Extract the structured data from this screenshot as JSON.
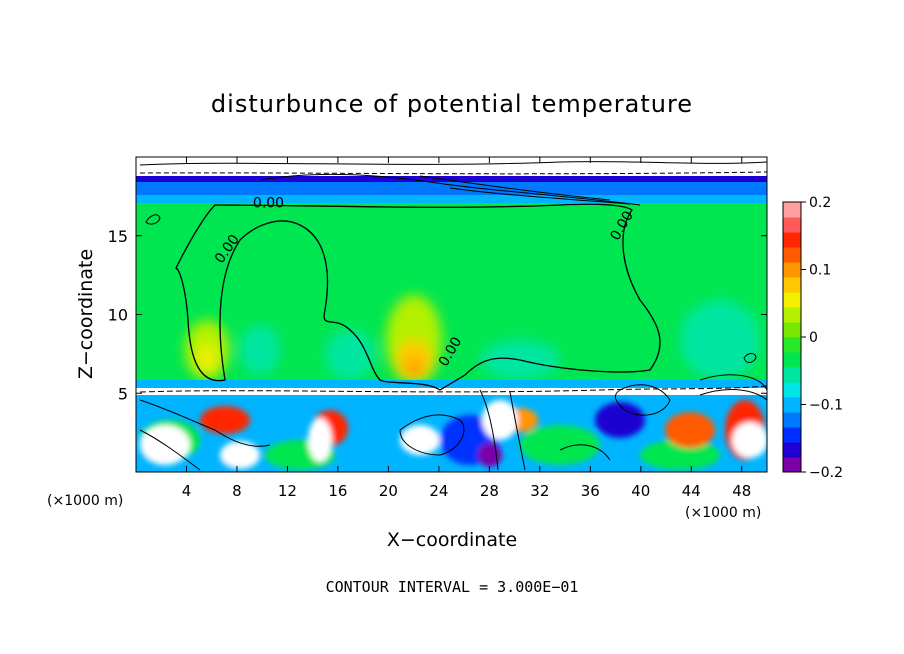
{
  "chart_data": {
    "type": "heatmap",
    "title": "disturbunce of potential temperature",
    "xlabel": "X−coordinate",
    "ylabel": "Z−coordinate",
    "x_unit_label_left": "(×1000 m)",
    "x_unit_label_right": "(×1000 m)",
    "footer": "CONTOUR INTERVAL = 3.000E−01",
    "xlim": [
      0,
      50
    ],
    "ylim": [
      0,
      20
    ],
    "x_ticks": [
      4,
      8,
      12,
      16,
      20,
      24,
      28,
      32,
      36,
      40,
      44,
      48
    ],
    "x_tick_labels": [
      "4",
      "8",
      "12",
      "16",
      "20",
      "24",
      "28",
      "32",
      "36",
      "40",
      "44",
      "48"
    ],
    "y_ticks": [
      5,
      10,
      15
    ],
    "y_tick_labels": [
      "5",
      "10",
      "15"
    ],
    "colorbar": {
      "range": [
        -0.2,
        0.2
      ],
      "ticks": [
        0.2,
        0.1,
        0,
        -0.1,
        -0.2
      ],
      "tick_labels": [
        "0.2",
        "0.1",
        "0",
        "−0.1",
        "−0.2"
      ],
      "colors": [
        "#7b00a8",
        "#1e00d2",
        "#0030ff",
        "#0078ff",
        "#00b4ff",
        "#00e6e6",
        "#00e6a0",
        "#00e650",
        "#28e628",
        "#78e600",
        "#b4f000",
        "#f0f000",
        "#ffc800",
        "#ff9600",
        "#ff5a00",
        "#ff2800",
        "#ff5a5a",
        "#ffa0a0"
      ]
    },
    "contour_labels": [
      {
        "text": "0.00",
        "x": 10.5,
        "z": 16.8,
        "angle": 0
      },
      {
        "text": "0.00",
        "x": 7.5,
        "z": 14.0,
        "angle": -55
      },
      {
        "text": "0.00",
        "x": 38.8,
        "z": 15.5,
        "angle": -60
      },
      {
        "text": "0.00",
        "x": 25.2,
        "z": 7.5,
        "angle": -60
      }
    ]
  }
}
